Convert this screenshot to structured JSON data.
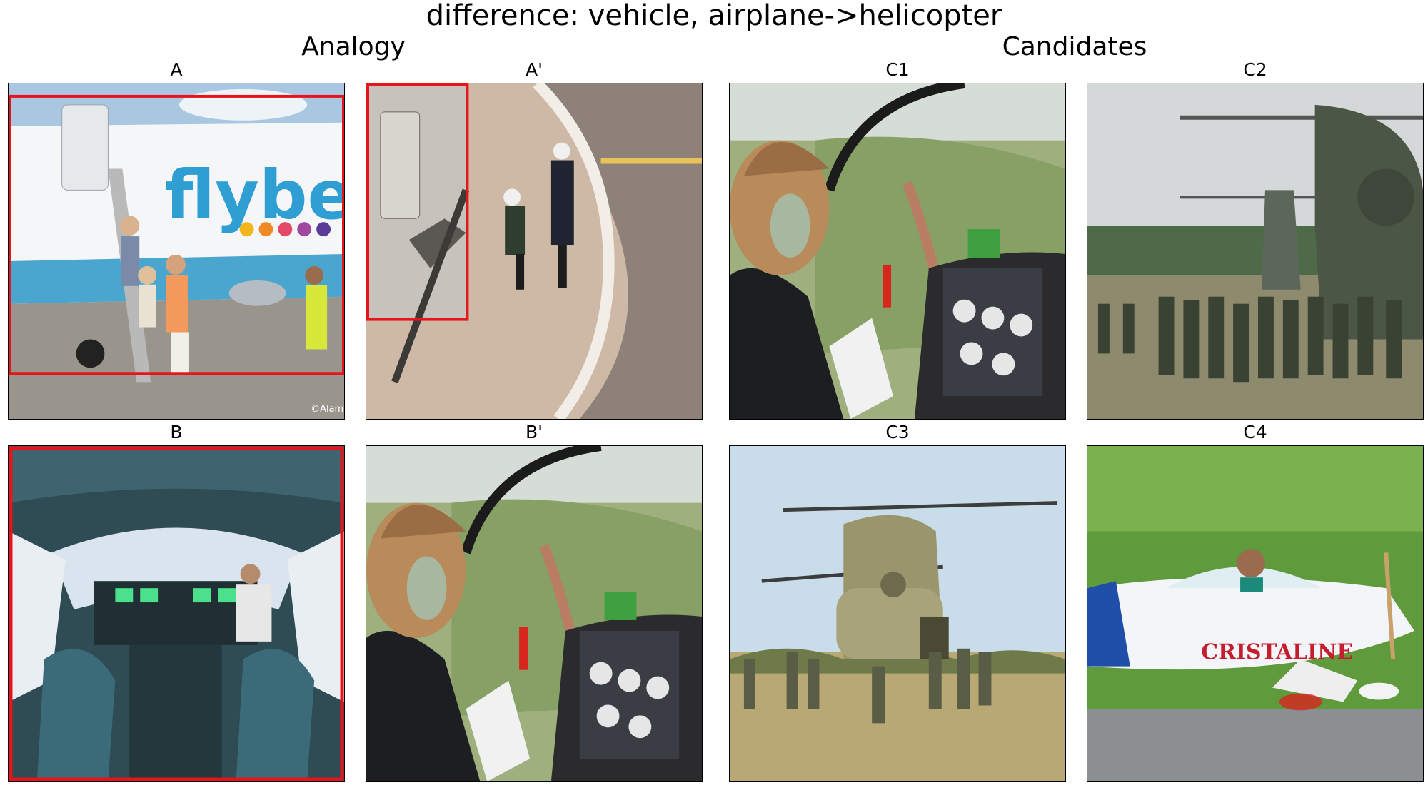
{
  "figure": {
    "title": "difference: vehicle, airplane->helicopter",
    "sections": {
      "analogy": "Analogy",
      "candidates": "Candidates"
    }
  },
  "panels": {
    "A": {
      "label": "A",
      "content": "flybe airplane passengers disembarking on tarmac",
      "logo_text": "flybe.",
      "watermark": "©Alamy"
    },
    "A_prime": {
      "label": "A'",
      "content": "aerial view of people walking on helipad near aircraft door"
    },
    "B": {
      "label": "B",
      "content": "airliner cockpit with pilot"
    },
    "B_prime": {
      "label": "B'",
      "content": "helicopter pilot with headset over countryside"
    },
    "C1": {
      "label": "C1",
      "content": "helicopter pilot with headset over countryside"
    },
    "C2": {
      "label": "C2",
      "content": "tandem-rotor helicopters with soldiers in field"
    },
    "C3": {
      "label": "C3",
      "content": "tandem-rotor helicopter with soldiers in field"
    },
    "C4": {
      "label": "C4",
      "content": "small white airplane with pilot",
      "logo_text": "CRISTALINE"
    }
  },
  "colors": {
    "highlight_box": "#e8141b",
    "frame": "#000000"
  }
}
